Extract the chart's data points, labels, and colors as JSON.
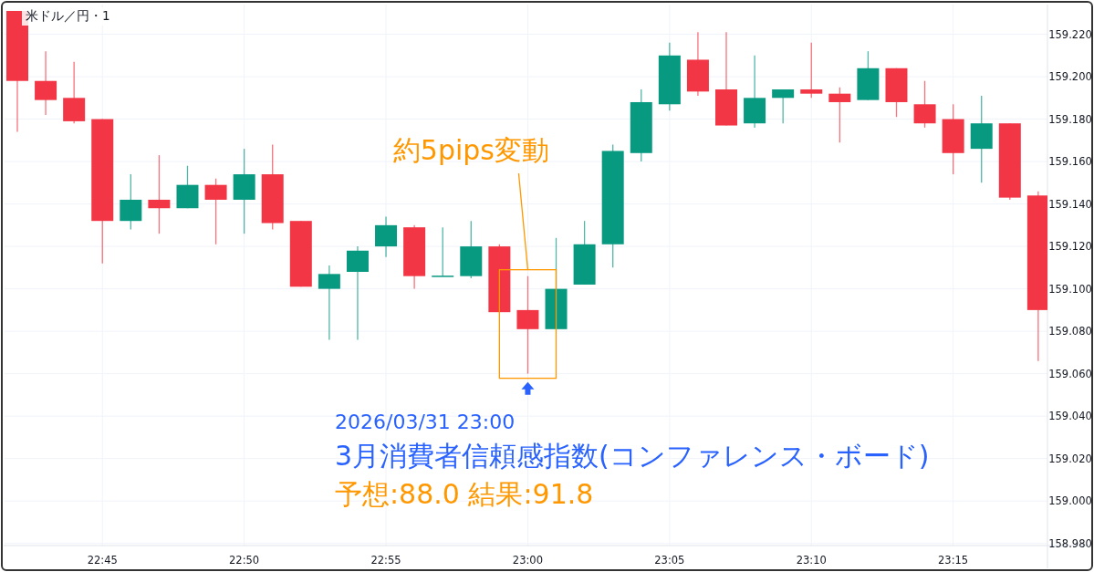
{
  "chart_data": {
    "type": "candlestick",
    "title": "米ドル／円・1",
    "categories": [
      null,
      null,
      null,
      "22:45",
      null,
      null,
      null,
      null,
      "22:50",
      null,
      null,
      null,
      null,
      "22:55",
      null,
      null,
      null,
      null,
      "23:00",
      null,
      null,
      null,
      null,
      "23:05",
      null,
      null,
      null,
      null,
      "23:10",
      null,
      null,
      null,
      null,
      "23:15",
      null,
      null,
      null
    ],
    "ohlc": [
      [
        159.231,
        159.231,
        159.174,
        159.198
      ],
      [
        159.198,
        159.212,
        159.182,
        159.189
      ],
      [
        159.19,
        159.207,
        159.178,
        159.179
      ],
      [
        159.18,
        159.18,
        159.112,
        159.132
      ],
      [
        159.132,
        159.154,
        159.128,
        159.142
      ],
      [
        159.142,
        159.163,
        159.126,
        159.138
      ],
      [
        159.138,
        159.158,
        159.138,
        159.149
      ],
      [
        159.149,
        159.152,
        159.121,
        159.142
      ],
      [
        159.142,
        159.166,
        159.126,
        159.154
      ],
      [
        159.154,
        159.168,
        159.128,
        159.131
      ],
      [
        159.132,
        159.132,
        159.101,
        159.101
      ],
      [
        159.1,
        159.111,
        159.076,
        159.107
      ],
      [
        159.108,
        159.12,
        159.076,
        159.118
      ],
      [
        159.12,
        159.134,
        159.115,
        159.13
      ],
      [
        159.129,
        159.13,
        159.1,
        159.106
      ],
      [
        159.106,
        159.129,
        159.106,
        159.106
      ],
      [
        159.106,
        159.132,
        159.105,
        159.12
      ],
      [
        159.12,
        159.121,
        159.089,
        159.089
      ],
      [
        159.09,
        159.106,
        159.06,
        159.081
      ],
      [
        159.081,
        159.124,
        159.081,
        159.1
      ],
      [
        159.102,
        159.132,
        159.102,
        159.121
      ],
      [
        159.121,
        159.168,
        159.11,
        159.165
      ],
      [
        159.164,
        159.194,
        159.16,
        159.188
      ],
      [
        159.187,
        159.216,
        159.184,
        159.21
      ],
      [
        159.208,
        159.221,
        159.191,
        159.193
      ],
      [
        159.194,
        159.221,
        159.177,
        159.177
      ],
      [
        159.178,
        159.21,
        159.176,
        159.19
      ],
      [
        159.19,
        159.194,
        159.178,
        159.194
      ],
      [
        159.194,
        159.216,
        159.19,
        159.192
      ],
      [
        159.192,
        159.195,
        159.169,
        159.188
      ],
      [
        159.189,
        159.212,
        159.189,
        159.204
      ],
      [
        159.204,
        159.204,
        159.181,
        159.188
      ],
      [
        159.187,
        159.198,
        159.176,
        159.178
      ],
      [
        159.18,
        159.187,
        159.154,
        159.164
      ],
      [
        159.166,
        159.191,
        159.15,
        159.178
      ],
      [
        159.178,
        159.178,
        159.142,
        159.143
      ],
      [
        159.144,
        159.146,
        159.066,
        159.09
      ]
    ],
    "colors": [
      "#f23645",
      "#f23645",
      "#f23645",
      "#f23645",
      "#089981",
      "#f23645",
      "#089981",
      "#f23645",
      "#089981",
      "#f23645",
      "#f23645",
      "#089981",
      "#089981",
      "#089981",
      "#f23645",
      "#089981",
      "#089981",
      "#f23645",
      "#f23645",
      "#089981",
      "#089981",
      "#089981",
      "#089981",
      "#089981",
      "#f23645",
      "#f23645",
      "#089981",
      "#089981",
      "#f23645",
      "#f23645",
      "#089981",
      "#f23645",
      "#f23645",
      "#f23645",
      "#089981",
      "#f23645",
      "#f23645"
    ],
    "ylim": [
      158.979,
      159.234
    ],
    "yticks": [
      {
        "value": 158.98,
        "label": "158.980"
      },
      {
        "value": 159.0,
        "label": "159.000"
      },
      {
        "value": 159.02,
        "label": "159.020"
      },
      {
        "value": 159.04,
        "label": "159.040"
      },
      {
        "value": 159.06,
        "label": "159.060"
      },
      {
        "value": 159.08,
        "label": "159.080"
      },
      {
        "value": 159.1,
        "label": "159.100"
      },
      {
        "value": 159.12,
        "label": "159.120"
      },
      {
        "value": 159.14,
        "label": "159.140"
      },
      {
        "value": 159.16,
        "label": "159.160"
      },
      {
        "value": 159.18,
        "label": "159.180"
      },
      {
        "value": 159.2,
        "label": "159.200"
      },
      {
        "value": 159.22,
        "label": "159.220"
      }
    ],
    "grid": true,
    "annotations": [
      "約5pips変動",
      "2026/03/31 23:00",
      "3月消費者信頼感指数(コンファレンス・ボード)",
      "予想:88.0 結果:91.8"
    ]
  }
}
